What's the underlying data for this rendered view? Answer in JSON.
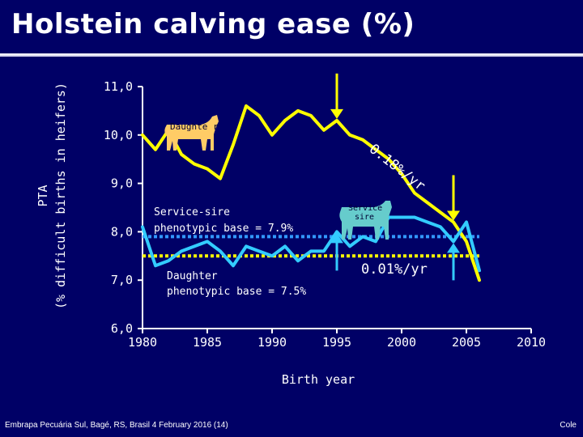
{
  "slide": {
    "title": "Holstein calving ease (%)",
    "footer_left": "Embrapa Pecuária Sul, Bagé, RS, Brasil 4 February 2016 (14)",
    "footer_right": "Cole"
  },
  "chart_data": {
    "type": "line",
    "title": "Holstein calving ease (%)",
    "xlabel": "Birth year",
    "ylabel_line1": "PTA",
    "ylabel_line2": "(% difficult births in heifers)",
    "xlim": [
      1980,
      2010
    ],
    "ylim": [
      6.0,
      11.0
    ],
    "x_ticks": [
      1980,
      1985,
      1990,
      1995,
      2000,
      2005,
      2010
    ],
    "x_tick_labels": [
      "1980",
      "1985",
      "1990",
      "1995",
      "2000",
      "2005",
      "2010"
    ],
    "y_ticks": [
      6.0,
      7.0,
      8.0,
      9.0,
      10.0,
      11.0
    ],
    "y_tick_labels": [
      "6,0",
      "7,0",
      "8,0",
      "9,0",
      "10,0",
      "11,0"
    ],
    "series": [
      {
        "name": "Daughter",
        "color": "#ffff00",
        "x": [
          1980,
          1981,
          1982,
          1983,
          1984,
          1985,
          1986,
          1987,
          1988,
          1989,
          1990,
          1991,
          1992,
          1993,
          1994,
          1995,
          1996,
          1997,
          1998,
          1999,
          2000,
          2001,
          2002,
          2003,
          2004,
          2005,
          2006
        ],
        "y": [
          10.0,
          9.7,
          10.1,
          9.6,
          9.4,
          9.3,
          9.1,
          9.8,
          10.6,
          10.4,
          10.0,
          10.3,
          10.5,
          10.4,
          10.1,
          10.3,
          10.0,
          9.9,
          9.7,
          9.5,
          9.2,
          8.8,
          8.6,
          8.4,
          8.2,
          7.8,
          7.0
        ]
      },
      {
        "name": "Service sire",
        "color": "#33ccff",
        "x": [
          1980,
          1981,
          1982,
          1983,
          1984,
          1985,
          1986,
          1987,
          1988,
          1989,
          1990,
          1991,
          1992,
          1993,
          1994,
          1995,
          1996,
          1997,
          1998,
          1999,
          2000,
          2001,
          2002,
          2003,
          2004,
          2005,
          2006
        ],
        "y": [
          8.1,
          7.3,
          7.4,
          7.6,
          7.7,
          7.8,
          7.6,
          7.3,
          7.7,
          7.6,
          7.5,
          7.7,
          7.4,
          7.6,
          7.6,
          8.0,
          7.7,
          7.9,
          7.8,
          8.3,
          8.3,
          8.3,
          8.2,
          8.1,
          7.8,
          8.2,
          7.2
        ]
      }
    ],
    "reference_lines": [
      {
        "label": "Service-sire phenotypic base = 7.9%",
        "y": 7.9,
        "color": "#3399ff"
      },
      {
        "label": "Daughter phenotypic base = 7.5%",
        "y": 7.5,
        "color": "#ffff00"
      }
    ],
    "annotations": {
      "service_sire_base_line1": "Service-sire",
      "service_sire_base_line2": "phenotypic base = 7.9%",
      "daughter_base_line1": "Daughter",
      "daughter_base_line2": "phenotypic base = 7.5%",
      "daughter_trend": "0.18%/yr",
      "sire_trend": "0.01%/yr",
      "daughter_icon_label": "Daughte r",
      "sire_icon_label_line1": "Service",
      "sire_icon_label_line2": "sire"
    },
    "markers": [
      {
        "series": "Daughter",
        "x": 1995,
        "direction": "down",
        "color": "#ffff00"
      },
      {
        "series": "Daughter",
        "x": 2004,
        "direction": "down",
        "color": "#ffff00"
      },
      {
        "series": "Service sire",
        "x": 1995,
        "direction": "up",
        "color": "#33ccff"
      },
      {
        "series": "Service sire",
        "x": 2004,
        "direction": "up",
        "color": "#33ccff"
      }
    ],
    "icons": {
      "daughter_icon": "cow-icon",
      "daughter_icon_color": "#ffcc66",
      "sire_icon": "bull-icon",
      "sire_icon_color": "#66cccc"
    }
  }
}
